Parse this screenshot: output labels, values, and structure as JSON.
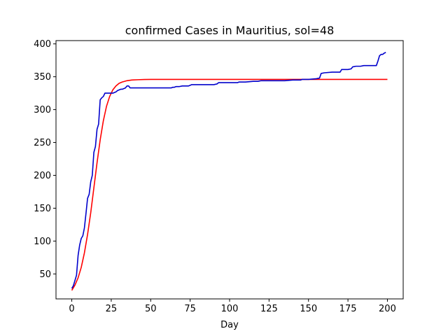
{
  "chart_data": {
    "type": "line",
    "title": "confirmed Cases in Mauritius, sol=48",
    "xlabel": "Day",
    "ylabel": "",
    "xlim": [
      -10,
      210
    ],
    "ylim": [
      12,
      405
    ],
    "xticks": [
      0,
      25,
      50,
      75,
      100,
      125,
      150,
      175,
      200
    ],
    "yticks": [
      50,
      100,
      150,
      200,
      250,
      300,
      350,
      400
    ],
    "grid": false,
    "series": [
      {
        "color": "#ff0000",
        "x": [
          0,
          2,
          4,
          6,
          8,
          10,
          12,
          14,
          16,
          18,
          20,
          22,
          24,
          26,
          28,
          30,
          32,
          35,
          38,
          42,
          46,
          50,
          60,
          80,
          100,
          120,
          140,
          160,
          180,
          200
        ],
        "values": [
          25,
          33,
          44,
          60,
          82,
          110,
          143,
          181,
          219,
          254,
          283,
          305,
          320,
          330,
          336,
          340,
          342,
          344,
          345,
          345.5,
          345.8,
          346,
          346,
          346,
          346,
          346,
          346,
          346,
          346,
          346
        ]
      },
      {
        "color": "#0000cc",
        "x": [
          0,
          1,
          2,
          3,
          4,
          5,
          6,
          7,
          8,
          9,
          10,
          11,
          12,
          13,
          14,
          15,
          16,
          17,
          18,
          19,
          20,
          21,
          22,
          23,
          24,
          26,
          28,
          29,
          31,
          32,
          34,
          35,
          36,
          37,
          38,
          40,
          45,
          50,
          55,
          60,
          63,
          64,
          65,
          66,
          67,
          68,
          70,
          72,
          74,
          75,
          76,
          78,
          80,
          85,
          90,
          92,
          93,
          95,
          100,
          105,
          106,
          110,
          115,
          118,
          120,
          125,
          130,
          135,
          140,
          145,
          146,
          150,
          155,
          157,
          158,
          160,
          165,
          170,
          171,
          175,
          177,
          178,
          180,
          183,
          185,
          190,
          193,
          194,
          195,
          196,
          197,
          198,
          199
        ],
        "values": [
          28,
          32,
          40,
          48,
          78,
          94,
          104,
          108,
          120,
          142,
          165,
          171,
          190,
          200,
          235,
          244,
          270,
          278,
          315,
          318,
          320,
          325,
          325,
          325,
          325,
          325,
          327,
          329,
          331,
          331,
          333,
          336,
          336,
          333,
          333,
          333,
          333,
          333,
          333,
          333,
          333,
          334,
          334,
          335,
          335,
          335,
          336,
          336,
          336,
          337,
          338,
          338,
          338,
          338,
          338,
          339,
          341,
          341,
          341,
          341,
          342,
          342,
          343,
          343,
          344,
          344,
          344,
          344,
          345,
          345,
          346,
          346,
          347,
          348,
          355,
          356,
          357,
          357,
          361,
          361,
          362,
          365,
          366,
          366,
          367,
          367,
          367,
          374,
          382,
          384,
          384,
          386,
          387
        ]
      }
    ]
  }
}
